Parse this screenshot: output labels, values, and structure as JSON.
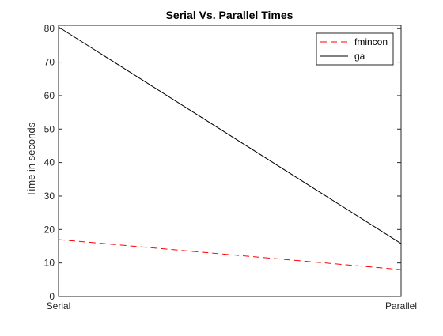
{
  "chart_data": {
    "type": "line",
    "title": "Serial Vs. Parallel Times",
    "xlabel": "",
    "ylabel": "Time in seconds",
    "categories": [
      "Serial",
      "Parallel"
    ],
    "ylim": [
      0,
      81
    ],
    "yticks": [
      0,
      10,
      20,
      30,
      40,
      50,
      60,
      70,
      80
    ],
    "grid": false,
    "legend_position": "top-right",
    "series": [
      {
        "name": "fmincon",
        "values": [
          17.0,
          8.0
        ],
        "color": "#ff0000",
        "style": "dashed"
      },
      {
        "name": "ga",
        "values": [
          80.5,
          15.8
        ],
        "color": "#000000",
        "style": "solid"
      }
    ]
  }
}
